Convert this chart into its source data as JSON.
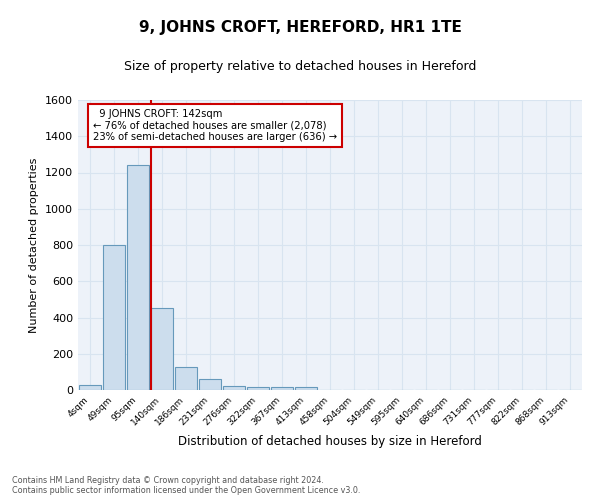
{
  "title": "9, JOHNS CROFT, HEREFORD, HR1 1TE",
  "subtitle": "Size of property relative to detached houses in Hereford",
  "xlabel": "Distribution of detached houses by size in Hereford",
  "ylabel": "Number of detached properties",
  "footer_line1": "Contains HM Land Registry data © Crown copyright and database right 2024.",
  "footer_line2": "Contains public sector information licensed under the Open Government Licence v3.0.",
  "bar_labels": [
    "4sqm",
    "49sqm",
    "95sqm",
    "140sqm",
    "186sqm",
    "231sqm",
    "276sqm",
    "322sqm",
    "367sqm",
    "413sqm",
    "458sqm",
    "504sqm",
    "549sqm",
    "595sqm",
    "640sqm",
    "686sqm",
    "731sqm",
    "777sqm",
    "822sqm",
    "868sqm",
    "913sqm"
  ],
  "bar_values": [
    25,
    800,
    1240,
    455,
    125,
    60,
    20,
    18,
    15,
    18,
    0,
    0,
    0,
    0,
    0,
    0,
    0,
    0,
    0,
    0,
    0
  ],
  "bar_color": "#ccdded",
  "bar_edge_color": "#6699bb",
  "grid_color": "#d8e4f0",
  "bg_color": "#edf2f9",
  "vline_color": "#cc0000",
  "annotation_text": "  9 JOHNS CROFT: 142sqm\n← 76% of detached houses are smaller (2,078)\n23% of semi-detached houses are larger (636) →",
  "annotation_box_color": "white",
  "annotation_box_edge": "#cc0000",
  "ylim": [
    0,
    1600
  ],
  "yticks": [
    0,
    200,
    400,
    600,
    800,
    1000,
    1200,
    1400,
    1600
  ]
}
